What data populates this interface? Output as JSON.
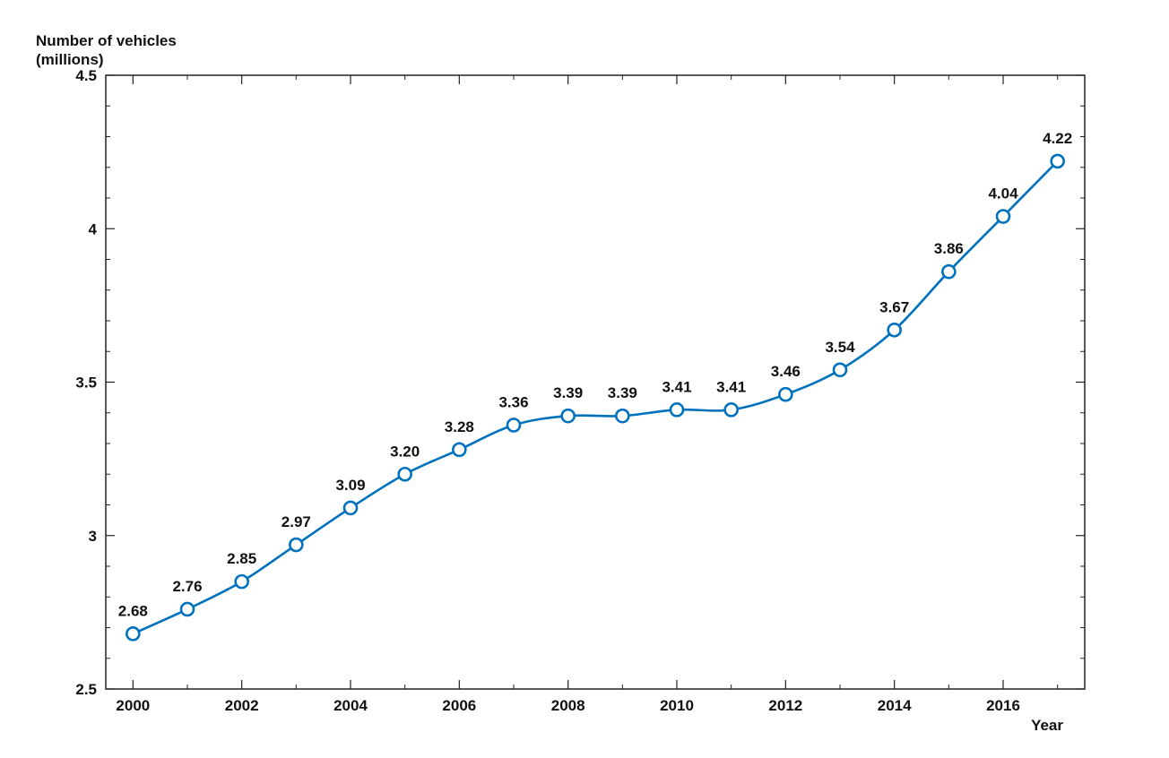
{
  "chart_data": {
    "type": "line",
    "xlabel": "Year",
    "ylabel_line1": "Number of vehicles",
    "ylabel_line2": "(millions)",
    "xlim": [
      1999.5,
      2017.5
    ],
    "ylim": [
      2.5,
      4.5
    ],
    "x_ticks": [
      2000,
      2002,
      2004,
      2006,
      2008,
      2010,
      2012,
      2014,
      2016
    ],
    "x_tick_labels": [
      "2000",
      "2002",
      "2004",
      "2006",
      "2008",
      "2010",
      "2012",
      "2014",
      "2016"
    ],
    "y_ticks": [
      2.5,
      3,
      3.5,
      4,
      4.5
    ],
    "y_tick_labels": [
      "2.5",
      "3",
      "3.5",
      "4",
      "4.5"
    ],
    "grid": false,
    "color": "#0072BD",
    "marker": "circle",
    "series": [
      {
        "x": [
          2000,
          2001,
          2002,
          2003,
          2004,
          2005,
          2006,
          2007,
          2008,
          2009,
          2010,
          2011,
          2012,
          2013,
          2014,
          2015,
          2016,
          2017
        ],
        "values": [
          2.68,
          2.76,
          2.85,
          2.97,
          3.09,
          3.2,
          3.28,
          3.36,
          3.39,
          3.39,
          3.41,
          3.41,
          3.46,
          3.54,
          3.67,
          3.86,
          4.04,
          4.22
        ],
        "labels": [
          "2.68",
          "2.76",
          "2.85",
          "2.97",
          "3.09",
          "3.20",
          "3.28",
          "3.36",
          "3.39",
          "3.39",
          "3.41",
          "3.41",
          "3.46",
          "3.54",
          "3.67",
          "3.86",
          "4.04",
          "4.22"
        ]
      }
    ]
  }
}
